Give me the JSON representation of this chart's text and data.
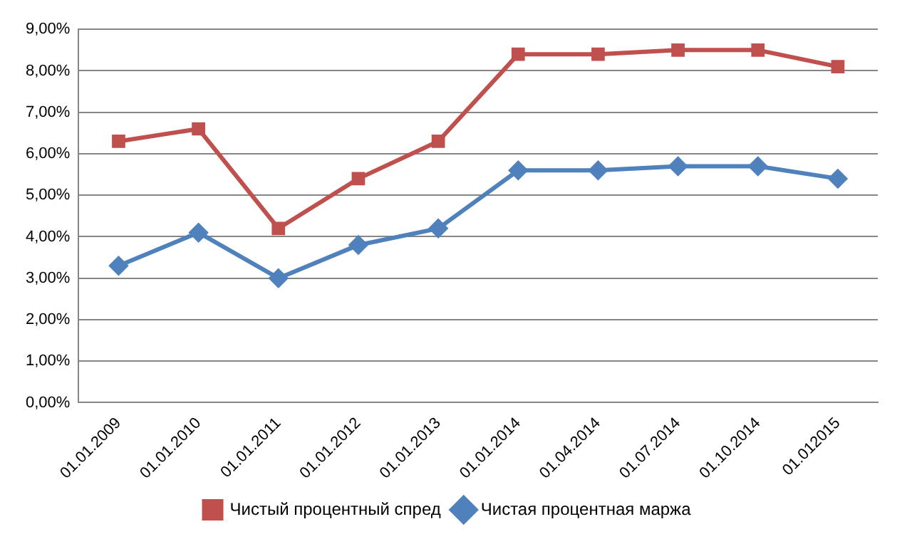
{
  "chart_data": {
    "type": "line",
    "categories": [
      "01.01.2009",
      "01.01.2010",
      "01.01.2011",
      "01.01.2012",
      "01.01.2013",
      "01.01.2014",
      "01.04.2014",
      "01.07.2014",
      "01.10.2014",
      "01.012015"
    ],
    "series": [
      {
        "name": "Чистый процентный спред",
        "color": "#c0504d",
        "marker": "square",
        "values": [
          6.3,
          6.6,
          4.2,
          5.4,
          6.3,
          8.4,
          8.4,
          8.5,
          8.5,
          8.1
        ]
      },
      {
        "name": "Чистая процентная маржа",
        "color": "#4f81bd",
        "marker": "diamond",
        "values": [
          3.3,
          4.1,
          3.0,
          3.8,
          4.2,
          5.6,
          5.6,
          5.7,
          5.7,
          5.4
        ]
      }
    ],
    "ylim": [
      0,
      9
    ],
    "yticks": [
      {
        "value": 0,
        "label": "0,00%"
      },
      {
        "value": 1,
        "label": "1,00%"
      },
      {
        "value": 2,
        "label": "2,00%"
      },
      {
        "value": 3,
        "label": "3,00%"
      },
      {
        "value": 4,
        "label": "4,00%"
      },
      {
        "value": 5,
        "label": "5,00%"
      },
      {
        "value": 6,
        "label": "6,00%"
      },
      {
        "value": 7,
        "label": "7,00%"
      },
      {
        "value": 8,
        "label": "8,00%"
      },
      {
        "value": 9,
        "label": "9,00%"
      }
    ],
    "grid": "y",
    "legend": "bottom",
    "line_style": "solid"
  }
}
